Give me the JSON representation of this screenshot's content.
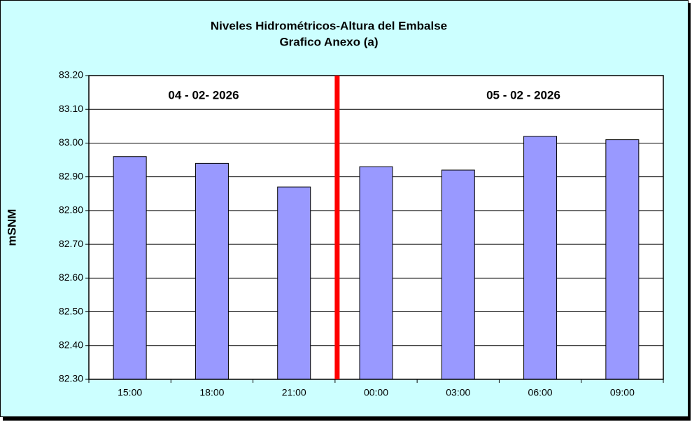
{
  "chart_data": {
    "type": "bar",
    "title": "Niveles Hidrométricos-Altura del Embalse",
    "subtitle": "Grafico Anexo (a)",
    "y_label": "mSNM",
    "annotations": [
      "04 - 02- 2026",
      "05 - 02 - 2026"
    ],
    "categories": [
      "15:00",
      "18:00",
      "21:00",
      "00:00",
      "03:00",
      "06:00",
      "09:00"
    ],
    "values": [
      82.96,
      82.94,
      82.87,
      82.93,
      82.92,
      83.02,
      83.01
    ],
    "color": "#9999ff",
    "ylim": [
      82.3,
      83.2
    ],
    "yticks": [
      {
        "value": 82.3,
        "label": "82.30"
      },
      {
        "value": 82.4,
        "label": "82.40"
      },
      {
        "value": 82.5,
        "label": "82.50"
      },
      {
        "value": 82.6,
        "label": "82.60"
      },
      {
        "value": 82.7,
        "label": "82.70"
      },
      {
        "value": 82.8,
        "label": "82.80"
      },
      {
        "value": 82.9,
        "label": "82.90"
      },
      {
        "value": 83.0,
        "label": "83.00"
      },
      {
        "value": 83.1,
        "label": "83.10"
      },
      {
        "value": 83.2,
        "label": "83.20"
      }
    ],
    "grid": true
  }
}
